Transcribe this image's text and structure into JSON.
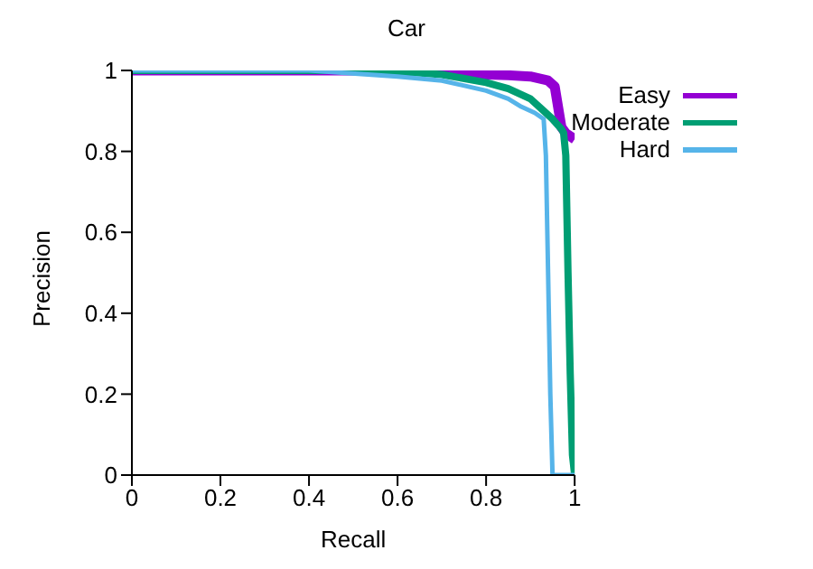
{
  "chart_data": {
    "type": "line",
    "title": "Car",
    "xlabel": "Recall",
    "ylabel": "Precision",
    "xlim": [
      0,
      1
    ],
    "ylim": [
      0,
      1
    ],
    "xticks": [
      0,
      0.2,
      0.4,
      0.6,
      0.8,
      1
    ],
    "yticks": [
      0,
      0.2,
      0.4,
      0.6,
      0.8,
      1
    ],
    "grid": false,
    "legend": "top right",
    "marker": "none",
    "line_style": "solid",
    "series": [
      {
        "name": "Easy",
        "color": "#9400d3",
        "x": [
          0,
          0.5,
          0.76,
          0.8,
          0.85,
          0.9,
          0.94,
          0.955,
          0.97,
          0.98,
          1
        ],
        "values": [
          1,
          1,
          0.998,
          0.99,
          0.988,
          0.985,
          0.975,
          0.96,
          0.86,
          0.845,
          0.83
        ]
      },
      {
        "name": "Moderate",
        "color": "#009e73",
        "x": [
          0,
          0.5,
          0.6,
          0.7,
          0.8,
          0.85,
          0.9,
          0.93,
          0.95,
          0.97,
          0.975,
          0.98,
          0.985,
          0.99,
          0.995,
          1
        ],
        "values": [
          1,
          1,
          0.998,
          0.99,
          0.97,
          0.955,
          0.93,
          0.9,
          0.88,
          0.855,
          0.846,
          0.79,
          0.5,
          0.25,
          0.05,
          0
        ]
      },
      {
        "name": "Hard",
        "color": "#56b4e9",
        "x": [
          0,
          0.4,
          0.6,
          0.7,
          0.8,
          0.85,
          0.88,
          0.91,
          0.93,
          0.935,
          0.94,
          0.945,
          0.95,
          1
        ],
        "values": [
          1,
          1,
          0.985,
          0.975,
          0.95,
          0.93,
          0.91,
          0.895,
          0.88,
          0.79,
          0.5,
          0.2,
          0,
          0
        ]
      }
    ]
  }
}
